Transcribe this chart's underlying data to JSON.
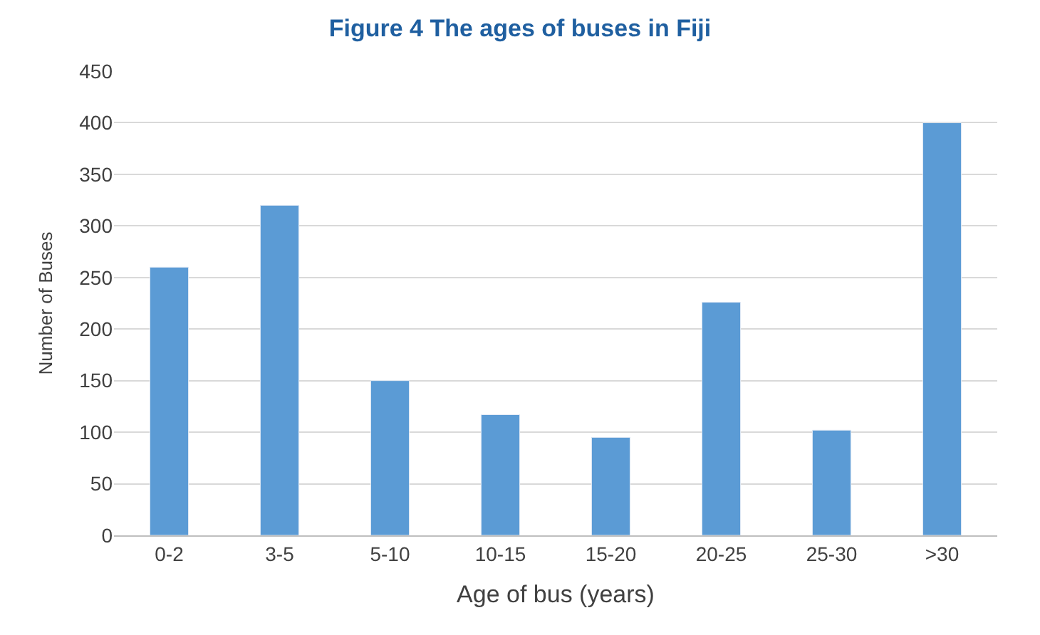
{
  "chart_data": {
    "type": "bar",
    "title": "Figure 4 The ages of buses in Fiji",
    "categories": [
      "0-2",
      "3-5",
      "5-10",
      "10-15",
      "15-20",
      "20-25",
      "25-30",
      ">30"
    ],
    "values": [
      260,
      320,
      150,
      117,
      95,
      226,
      102,
      400
    ],
    "color": "#5b9bd5",
    "xlabel": "Age of bus (years)",
    "ylabel": "Number of Buses",
    "ylim": [
      0,
      450
    ],
    "yticks": [
      0,
      50,
      100,
      150,
      200,
      250,
      300,
      350,
      400,
      450
    ],
    "grid": "y",
    "legend": false
  }
}
